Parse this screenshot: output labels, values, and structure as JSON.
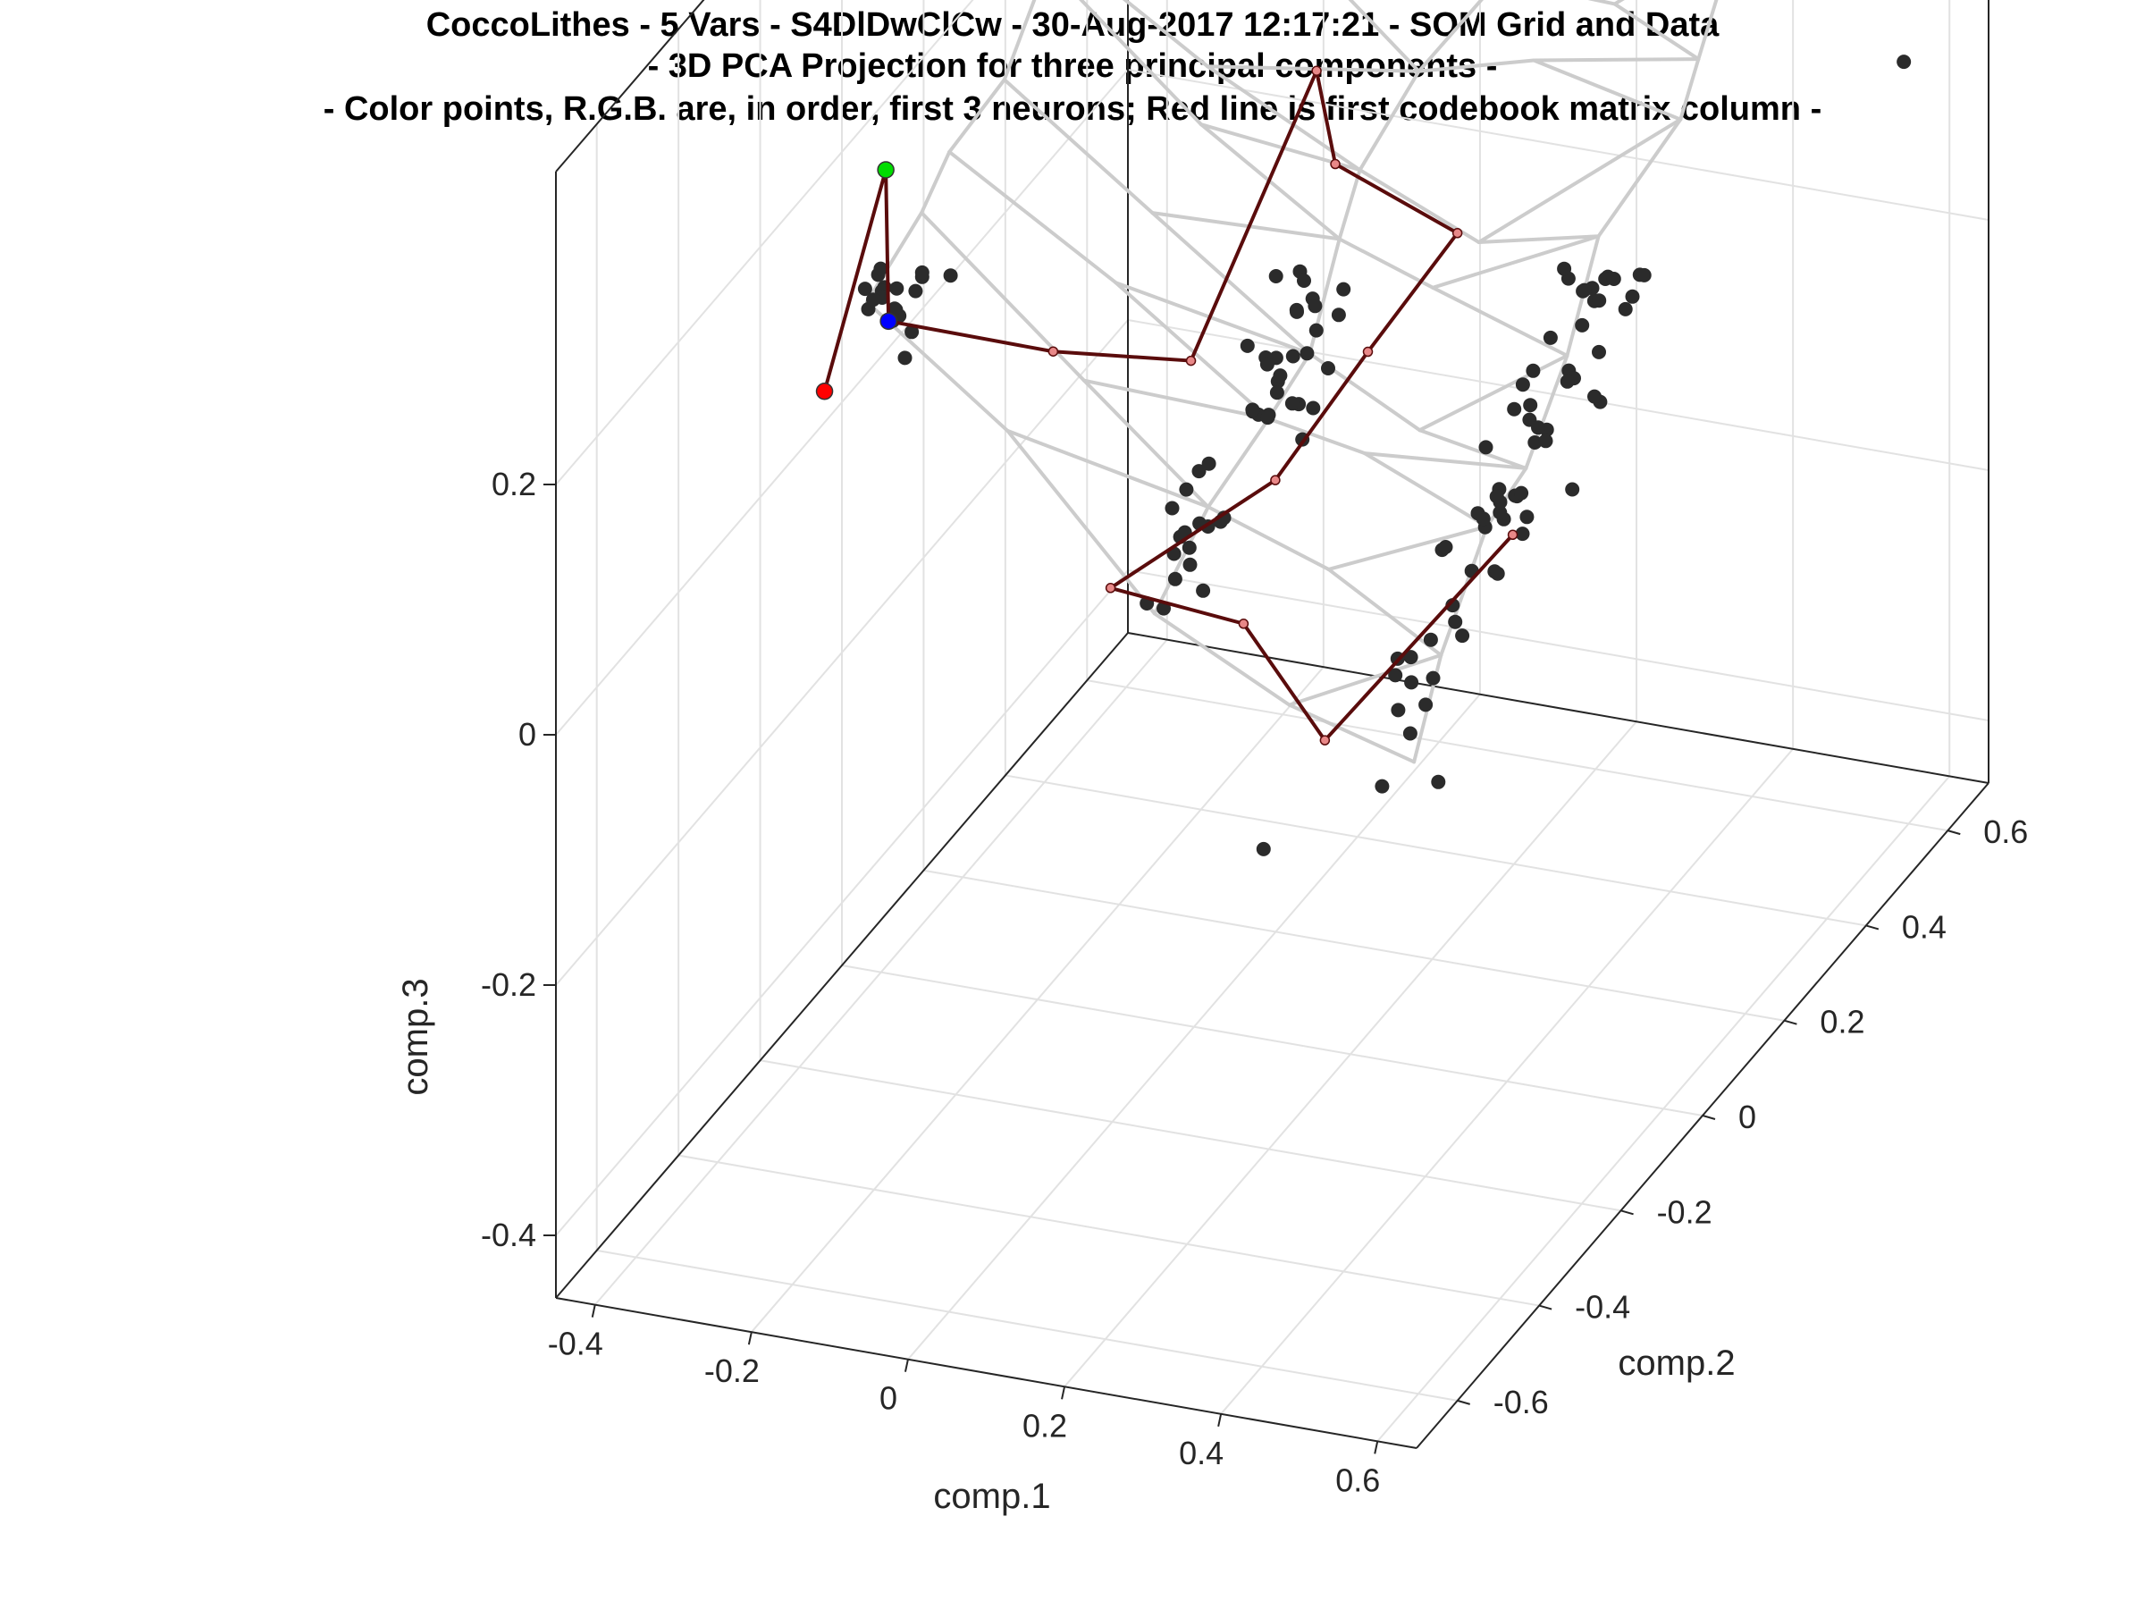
{
  "chart_data": {
    "type": "scatter",
    "title": "CoccoLithes - 5 Vars - S4DlDwClCw - 30-Aug-2017 12:17:21 - SOM Grid and Data",
    "subtitle": "- 3D PCA Projection for three principal components -",
    "subtitle2": "- Color points, R.G.B. are, in order, first 3 neurons; Red line is first codebook matrix column -",
    "xlabel": "comp.1",
    "ylabel": "comp.2",
    "zlabel": "comp.3",
    "xlim": [
      -0.45,
      0.65
    ],
    "ylim": [
      -0.7,
      0.7
    ],
    "zlim": [
      -0.45,
      0.45
    ],
    "xticks": [
      -0.4,
      -0.2,
      0,
      0.2,
      0.4,
      0.6
    ],
    "xtick_labels": [
      "-0.4",
      "-0.2",
      "0",
      "0.2",
      "0.4",
      "0.6"
    ],
    "yticks": [
      -0.6,
      -0.4,
      -0.2,
      0,
      0.2,
      0.4,
      0.6
    ],
    "ytick_labels": [
      "-0.6",
      "-0.4",
      "-0.2",
      "0",
      "0.2",
      "0.4",
      "0.6"
    ],
    "zticks": [
      -0.4,
      -0.2,
      0,
      0.2
    ],
    "ztick_labels": [
      "-0.4",
      "-0.2",
      "0",
      "0.2"
    ],
    "grid": true,
    "colors": {
      "data_points": "#2b2b2b",
      "som_grid": "#cccccc",
      "codebook_line": "#5a0c0c",
      "codebook_marker": "#e88888",
      "neuron_1": "#ff0000",
      "neuron_2": "#00dd00",
      "neuron_3": "#0000ff",
      "axes": "#262626",
      "gridlines": "#e2e2e2"
    },
    "neurons": [
      {
        "name": "neuron 1",
        "color": "#ff0000",
        "x": -0.42,
        "y": -0.1,
        "z": 0.05
      },
      {
        "name": "neuron 2",
        "color": "#00dd00",
        "x": -0.42,
        "y": 0.05,
        "z": 0.17
      },
      {
        "name": "neuron 3",
        "color": "#0000ff",
        "x": -0.38,
        "y": -0.02,
        "z": 0.08
      }
    ],
    "codebook_column_1": [
      {
        "x": -0.42,
        "y": -0.1,
        "z": 0.05
      },
      {
        "x": -0.42,
        "y": 0.05,
        "z": 0.17
      },
      {
        "x": -0.38,
        "y": -0.02,
        "z": 0.08
      },
      {
        "x": -0.18,
        "y": 0.0,
        "z": 0.07
      },
      {
        "x": -0.03,
        "y": 0.05,
        "z": 0.06
      },
      {
        "x": 0.0,
        "y": 0.3,
        "z": 0.2
      },
      {
        "x": 0.05,
        "y": 0.25,
        "z": 0.15
      },
      {
        "x": 0.18,
        "y": 0.3,
        "z": 0.09
      },
      {
        "x": 0.17,
        "y": 0.1,
        "z": 0.07
      },
      {
        "x": 0.13,
        "y": -0.05,
        "z": 0.02
      },
      {
        "x": 0.05,
        "y": -0.3,
        "z": 0.02
      },
      {
        "x": 0.22,
        "y": -0.3,
        "z": 0.01
      },
      {
        "x": 0.35,
        "y": -0.35,
        "z": -0.05
      },
      {
        "x": 0.47,
        "y": -0.12,
        "z": 0.04
      }
    ],
    "series_note": "Black points are the data samples; light-gray mesh is the SOM grid.",
    "legend": "none"
  }
}
